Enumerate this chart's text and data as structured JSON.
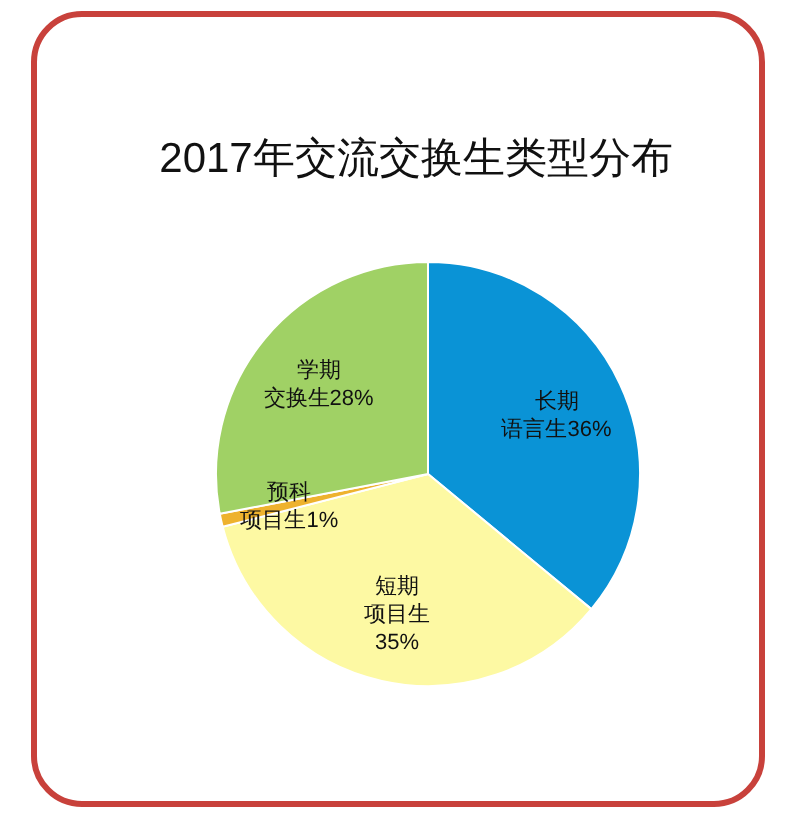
{
  "chart_data": {
    "type": "pie",
    "title": "2017年交流交换生类型分布",
    "categories": [
      "长期语言生",
      "短期项目生",
      "预科项目生",
      "学期交换生"
    ],
    "values": [
      36,
      35,
      1,
      28
    ],
    "colors": [
      "#0a93d6",
      "#fdf9a3",
      "#eeb22e",
      "#a0d165"
    ],
    "value_labels": [
      "36%",
      "35%",
      "1%",
      "28%"
    ]
  }
}
